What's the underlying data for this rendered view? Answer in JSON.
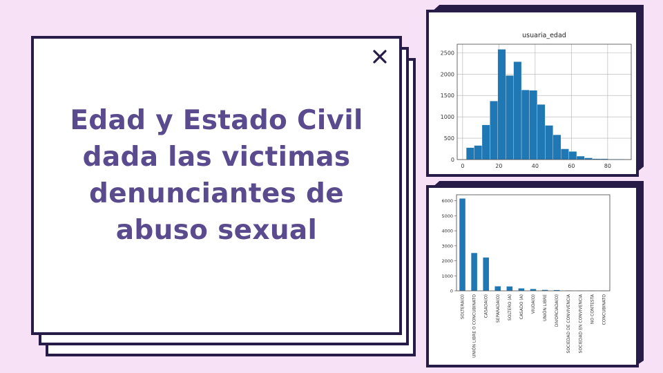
{
  "slide": {
    "title": "Edad y Estado Civil dada las victimas denunciantes de abuso sexual",
    "close_icon": "close-icon",
    "colors": {
      "background": "#f6e1f6",
      "border": "#271b47",
      "title": "#5a4a8e",
      "bars": "#1f77b4"
    }
  },
  "chart_data": [
    {
      "type": "bar",
      "subtype": "histogram",
      "title": "usuaria_edad",
      "xlabel": "",
      "ylabel": "",
      "bin_edges": [
        2,
        6.35,
        10.7,
        15.05,
        19.4,
        23.75,
        28.1,
        32.45,
        36.8,
        41.15,
        45.5,
        49.85,
        54.2,
        58.55,
        62.9,
        67.25,
        71.6,
        75.95,
        80.3,
        84.65,
        89
      ],
      "values": [
        280,
        330,
        810,
        1370,
        2580,
        1970,
        2290,
        1630,
        1620,
        1290,
        800,
        580,
        250,
        190,
        80,
        40,
        20,
        20,
        10,
        10
      ],
      "xlim": [
        -3,
        93
      ],
      "ylim": [
        0,
        2700
      ],
      "xticks": [
        0,
        20,
        40,
        60,
        80
      ],
      "yticks": [
        0,
        500,
        1000,
        1500,
        2000,
        2500
      ],
      "grid": true
    },
    {
      "type": "bar",
      "title": "",
      "xlabel": "",
      "ylabel": "",
      "categories": [
        "SOLTERA(O)",
        "UNIÓN LIBRE O CONCUBINATO",
        "CASADA(O)",
        "SEPARADA(O)",
        "SOLTERO (A)",
        "CASADO (A)",
        "VIUDA(O)",
        "UNIÓN LIBRE",
        "DIVORCIADA(O)",
        "SOCIEDAD DE CONVIVENCIA",
        "SOCIEDAD EN CONVIVENCIA",
        "NO CONTESTA",
        "CONCUBINATO"
      ],
      "values": [
        6150,
        2520,
        2220,
        300,
        290,
        160,
        120,
        60,
        50,
        20,
        10,
        5,
        5
      ],
      "ylim": [
        0,
        6400
      ],
      "yticks": [
        0,
        1000,
        2000,
        3000,
        4000,
        5000,
        6000
      ],
      "grid": false
    }
  ]
}
